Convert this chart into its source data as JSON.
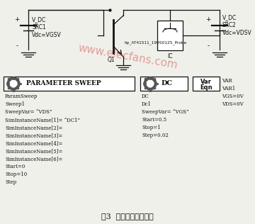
{
  "title": "图3  封装模型仿真电路",
  "background_color": "#f5f5f0",
  "watermark": "www.elecfans.com",
  "src1_labels": [
    "V_DC",
    "SRC1",
    "Vdc=VGSV"
  ],
  "src2_labels": [
    "V_DC",
    "SRC2",
    "Vdc=VDSV"
  ],
  "transistor_label": "hp_AT41511_19950125_Probe",
  "transistor_sub": "Q1",
  "ic_label": "IC",
  "param_sweep_label": "PARAMETER SWEEP",
  "param_sweep_text": [
    "ParamSweep",
    "Sweep1",
    "SweepVar= “VDS”",
    "SimInstanceName[1]= “DC1”",
    "SimInstanceName[2]=",
    "SimInstanceName[3]=",
    "SimInstanceName[4]=",
    "SimInstanceName[5]=",
    "SimInstanceName[6]=",
    "Start=0",
    "Stop=10",
    "Step"
  ],
  "dc_label": "DC",
  "dc_text": [
    "DC",
    "Dc1",
    "SweepVar= “VGS”",
    "Start=0.5",
    "Stop=1",
    "Step=0.02"
  ],
  "var_line1": "Var",
  "var_line2": "Eqn",
  "var_text": [
    "VAR",
    "VAR1",
    "VGS=0V",
    "VDS=0V"
  ]
}
